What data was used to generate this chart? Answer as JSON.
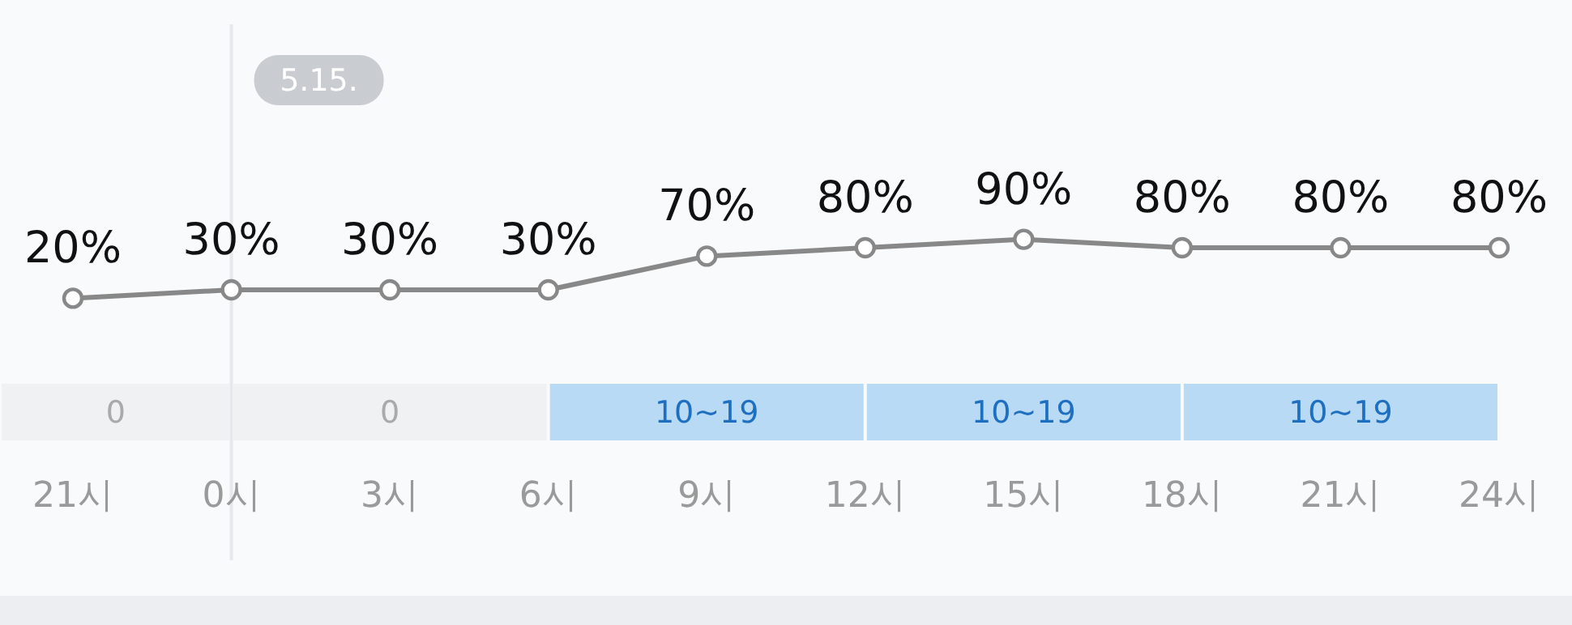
{
  "chart_data": {
    "type": "line",
    "categories": [
      "21시",
      "0시",
      "3시",
      "6시",
      "9시",
      "12시",
      "15시",
      "18시",
      "21시",
      "24시"
    ],
    "values": [
      20,
      30,
      30,
      30,
      70,
      80,
      90,
      80,
      80,
      80
    ],
    "value_labels": [
      "20%",
      "30%",
      "30%",
      "30%",
      "70%",
      "80%",
      "90%",
      "80%",
      "80%",
      "80%"
    ],
    "color": "#888888",
    "marker": "circle",
    "line_style": "solid",
    "grid": false,
    "legend": false,
    "ref_lines": [
      {
        "axis": "x",
        "value": "0시",
        "label": "5.15.",
        "color": "#e6e8eb"
      }
    ],
    "annotations": [
      "0",
      "0",
      "10~19",
      "10~19",
      "10~19"
    ]
  }
}
